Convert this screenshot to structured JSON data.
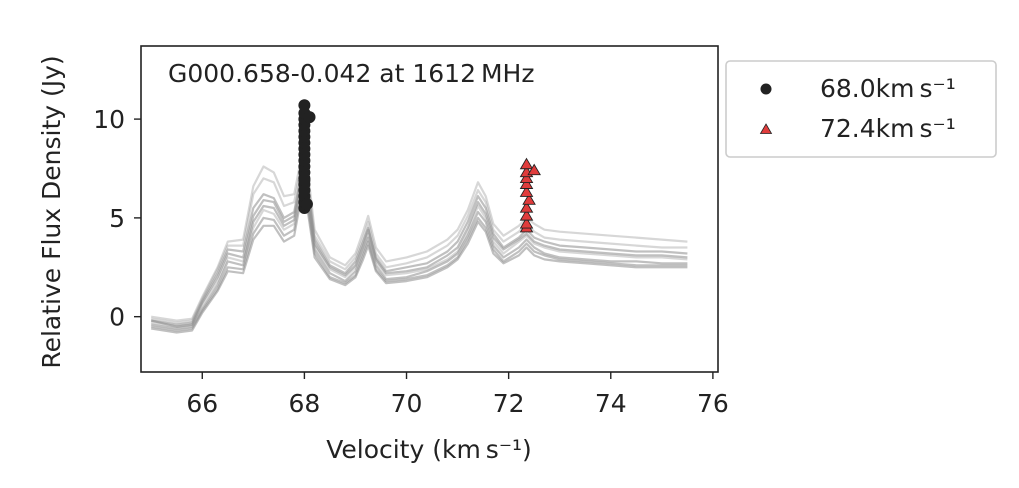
{
  "chart_data": {
    "type": "line",
    "annotation": "G000.658-0.042 at 1612 MHz",
    "xlabel": "Velocity (km s⁻¹)",
    "ylabel": "Relative Flux Density (Jy)",
    "xlim": [
      64.8,
      76.1
    ],
    "ylim": [
      -2.8,
      13.7
    ],
    "xticks": [
      "66",
      "68",
      "70",
      "72",
      "74",
      "76"
    ],
    "yticks": [
      "0",
      "5",
      "10"
    ],
    "xtick_values": [
      66,
      68,
      70,
      72,
      74,
      76
    ],
    "ytick_values": [
      0,
      5,
      10
    ],
    "grid": false,
    "legend_position": "outside-top-right",
    "spectrum_color": "#8c8c8c",
    "spectrum": {
      "x": [
        65.0,
        65.5,
        65.8,
        66.0,
        66.3,
        66.5,
        66.8,
        67.0,
        67.2,
        67.4,
        67.6,
        67.8,
        67.95,
        68.05,
        68.2,
        68.5,
        68.8,
        69.0,
        69.15,
        69.25,
        69.4,
        69.6,
        70.0,
        70.4,
        70.8,
        71.0,
        71.2,
        71.4,
        71.55,
        71.7,
        71.9,
        72.2,
        72.35,
        72.5,
        72.7,
        73.0,
        73.5,
        74.0,
        74.5,
        75.0,
        75.5
      ],
      "series": [
        {
          "values": [
            -0.3,
            -0.5,
            -0.4,
            0.6,
            1.8,
            3.0,
            2.8,
            4.5,
            5.4,
            5.2,
            4.4,
            4.7,
            7.0,
            6.5,
            3.6,
            2.4,
            2.0,
            2.5,
            3.5,
            4.2,
            2.8,
            2.1,
            2.2,
            2.4,
            2.9,
            3.3,
            4.3,
            5.6,
            5.0,
            3.8,
            3.2,
            3.8,
            4.1,
            3.7,
            3.5,
            3.3,
            3.2,
            3.1,
            3.0,
            3.0,
            2.9
          ]
        },
        {
          "values": [
            -0.2,
            -0.4,
            -0.3,
            0.8,
            2.2,
            3.4,
            3.3,
            5.5,
            6.2,
            6.0,
            5.0,
            5.3,
            7.4,
            6.9,
            3.9,
            2.6,
            2.2,
            2.8,
            3.8,
            4.5,
            3.0,
            2.3,
            2.5,
            2.7,
            3.3,
            3.8,
            4.8,
            6.1,
            5.5,
            4.2,
            3.5,
            4.0,
            4.4,
            4.0,
            3.8,
            3.6,
            3.5,
            3.4,
            3.3,
            3.3,
            3.2
          ]
        },
        {
          "values": [
            -0.4,
            -0.6,
            -0.5,
            0.4,
            1.6,
            2.8,
            2.6,
            4.8,
            5.6,
            5.5,
            4.6,
            4.9,
            6.8,
            6.2,
            3.4,
            2.2,
            1.8,
            2.3,
            3.3,
            4.0,
            2.6,
            1.9,
            2.0,
            2.3,
            2.8,
            3.2,
            4.1,
            5.3,
            4.8,
            3.6,
            3.0,
            3.5,
            3.9,
            3.5,
            3.2,
            3.0,
            2.9,
            2.8,
            2.8,
            2.7,
            2.7
          ]
        },
        {
          "values": [
            -0.1,
            -0.3,
            -0.2,
            0.9,
            2.4,
            3.6,
            3.6,
            6.2,
            7.0,
            6.8,
            5.6,
            5.8,
            7.8,
            7.3,
            4.1,
            2.8,
            2.4,
            3.0,
            4.0,
            4.8,
            3.2,
            2.5,
            2.7,
            3.0,
            3.6,
            4.1,
            5.1,
            6.4,
            5.8,
            4.4,
            3.8,
            4.3,
            4.7,
            4.3,
            4.0,
            3.9,
            3.8,
            3.7,
            3.6,
            3.5,
            3.5
          ]
        },
        {
          "values": [
            -0.5,
            -0.7,
            -0.6,
            0.3,
            1.4,
            2.5,
            2.4,
            4.2,
            5.0,
            4.9,
            4.1,
            4.4,
            6.5,
            5.9,
            3.2,
            2.0,
            1.7,
            2.1,
            3.1,
            3.8,
            2.4,
            1.8,
            1.9,
            2.1,
            2.6,
            3.0,
            3.9,
            5.0,
            4.5,
            3.4,
            2.8,
            3.3,
            3.7,
            3.3,
            3.1,
            2.9,
            2.8,
            2.7,
            2.6,
            2.6,
            2.6
          ]
        },
        {
          "values": [
            -0.2,
            -0.5,
            -0.4,
            0.7,
            2.0,
            3.2,
            3.0,
            5.1,
            5.9,
            5.8,
            4.8,
            5.1,
            7.2,
            6.7,
            3.7,
            2.5,
            2.1,
            2.6,
            3.6,
            4.4,
            2.9,
            2.2,
            2.3,
            2.5,
            3.1,
            3.5,
            4.5,
            5.8,
            5.2,
            4.0,
            3.4,
            3.9,
            4.2,
            3.8,
            3.6,
            3.4,
            3.3,
            3.2,
            3.1,
            3.1,
            3.0
          ]
        },
        {
          "values": [
            0.0,
            -0.2,
            -0.1,
            1.0,
            2.5,
            3.8,
            3.9,
            6.6,
            7.6,
            7.3,
            6.1,
            6.2,
            8.2,
            7.7,
            4.4,
            3.0,
            2.6,
            3.2,
            4.3,
            5.1,
            3.5,
            2.8,
            3.0,
            3.3,
            3.9,
            4.4,
            5.4,
            6.8,
            6.1,
            4.7,
            4.1,
            4.6,
            5.0,
            4.7,
            4.4,
            4.3,
            4.2,
            4.1,
            4.0,
            3.9,
            3.8
          ]
        },
        {
          "values": [
            -0.6,
            -0.8,
            -0.7,
            0.2,
            1.3,
            2.3,
            2.2,
            3.9,
            4.6,
            4.6,
            3.8,
            4.1,
            6.2,
            5.6,
            3.0,
            1.9,
            1.6,
            2.0,
            2.9,
            3.6,
            2.3,
            1.7,
            1.8,
            2.0,
            2.5,
            2.9,
            3.7,
            4.8,
            4.3,
            3.2,
            2.7,
            3.1,
            3.5,
            3.1,
            2.9,
            2.8,
            2.7,
            2.6,
            2.5,
            2.5,
            2.5
          ]
        }
      ]
    },
    "series": [
      {
        "name": "68.0km s⁻¹",
        "marker": "circle",
        "color": "#222222",
        "x": [
          68.0,
          68.0,
          68.0,
          68.0,
          68.0,
          68.0,
          68.0,
          68.0,
          68.0,
          68.0,
          68.0,
          68.0,
          68.0,
          68.0,
          68.0,
          68.0,
          68.0,
          68.0,
          68.1,
          68.05,
          68.0
        ],
        "y": [
          5.5,
          5.8,
          6.1,
          6.4,
          6.7,
          7.0,
          7.3,
          7.6,
          7.9,
          8.2,
          8.5,
          8.8,
          9.1,
          9.4,
          9.7,
          10.0,
          10.3,
          10.7,
          10.1,
          5.7,
          6.9
        ]
      },
      {
        "name": "72.4km s⁻¹",
        "marker": "triangle",
        "color": "#e03c3c",
        "x": [
          72.35,
          72.35,
          72.35,
          72.35,
          72.4,
          72.35,
          72.35,
          72.35,
          72.35,
          72.35,
          72.5
        ],
        "y": [
          4.5,
          4.7,
          5.1,
          5.5,
          5.9,
          6.3,
          6.7,
          7.0,
          7.3,
          7.7,
          7.4
        ]
      }
    ]
  }
}
